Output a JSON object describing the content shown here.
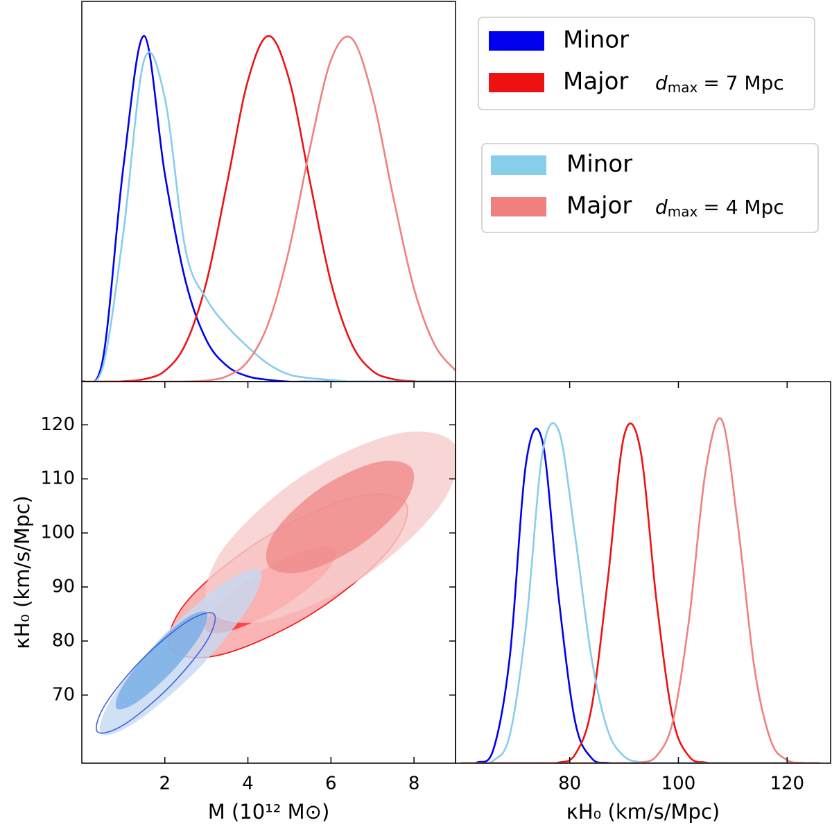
{
  "chart_data": [
    {
      "type": "line",
      "x": [
        0,
        0.5,
        1,
        1.5,
        2,
        2.5,
        3,
        3.5,
        4,
        4.5,
        5,
        5.5,
        6,
        6.5,
        7,
        7.5,
        8,
        8.5,
        9
      ],
      "xlim": [
        0,
        9
      ],
      "ylim": [
        0,
        1.1
      ],
      "series": [
        {
          "name": "Minor",
          "color": "#0000ee",
          "values": [
            0,
            0.06,
            0.62,
            1,
            0.6,
            0.29,
            0.12,
            0.045,
            0.015,
            0.005,
            0,
            0,
            0,
            0,
            0,
            0,
            0,
            0,
            0
          ]
        },
        {
          "name": "Major",
          "color": "#ee1111",
          "values": [
            0,
            0,
            0.001,
            0.007,
            0.031,
            0.109,
            0.287,
            0.575,
            0.871,
            1,
            0.871,
            0.575,
            0.287,
            0.109,
            0.031,
            0.007,
            0.001,
            0,
            0
          ]
        },
        {
          "name": "Minor",
          "color": "#87ceeb",
          "values": [
            0,
            0.04,
            0.43,
            0.93,
            0.82,
            0.38,
            0.24,
            0.16,
            0.1,
            0.05,
            0.02,
            0.01,
            0.005,
            0,
            0,
            0,
            0,
            0,
            0
          ]
        },
        {
          "name": "Major",
          "color": "#f08080",
          "values": [
            0,
            0,
            0,
            0,
            0,
            0.0005,
            0.003,
            0.016,
            0.059,
            0.171,
            0.386,
            0.679,
            0.93,
            0.993,
            0.825,
            0.534,
            0.269,
            0.106,
            0.032
          ]
        }
      ],
      "legend_groups": [
        {
          "symbol": "d",
          "subscript": "max",
          "text": "= 7 Mpc"
        },
        {
          "symbol": "d",
          "subscript": "max",
          "text": "= 4 Mpc"
        }
      ],
      "legend": "upper right"
    },
    {
      "type": "contour",
      "xlabel": "M (10¹² M⊙)",
      "ylabel": "κH₀ (km/s/Mpc)",
      "xlim": [
        0,
        9
      ],
      "ylim": [
        57.4,
        128
      ],
      "xticks": [
        2,
        4,
        6,
        8
      ],
      "yticks": [
        70,
        80,
        90,
        100,
        110,
        120
      ],
      "series": [
        {
          "color": "#ee1111",
          "fills": [
            "#f7a3a3",
            "#ff2a2a"
          ],
          "contours": [
            {
              "x": [
                7.8,
                7.37,
                5.53,
                3.37,
                2.13,
                2.56,
                4.4,
                6.57
              ],
              "y": [
                105.5,
                96.6,
                85.0,
                77.5,
                78.6,
                87.6,
                99.1,
                106.6
              ]
            },
            {
              "x": [
                6.11,
                5.84,
                4.81,
                3.63,
                2.99,
                3.26,
                4.29,
                5.47
              ],
              "y": [
                96.9,
                92.4,
                86.2,
                82.0,
                82.1,
                86.6,
                92.8,
                97.0
              ]
            }
          ]
        },
        {
          "color": "#f08080",
          "fills": [
            "#f7cccc",
            "#f08a8a"
          ],
          "contours": [
            {
              "x": [
                8.98,
                8.67,
                6.81,
                4.49,
                3.06,
                3.36,
                5.22,
                7.55
              ],
              "y": [
                116.4,
                105.5,
                92.0,
                83.8,
                85.7,
                96.6,
                110.1,
                118.3
              ]
            },
            {
              "x": [
                7.95,
                7.77,
                6.68,
                5.32,
                4.49,
                4.66,
                5.75,
                7.11
              ],
              "y": [
                111.9,
                105.5,
                97.6,
                92.8,
                94.0,
                100.4,
                108.3,
                113.1
              ]
            }
          ]
        },
        {
          "color": "#87ceeb",
          "fills": [
            "#c5daf2",
            "#74abe6"
          ],
          "contours": [
            {
              "x": [
                4.3,
                4.03,
                2.8,
                1.32,
                0.47,
                0.73,
                1.97,
                3.44
              ],
              "y": [
                93.1,
                86.4,
                74.8,
                65.1,
                62.8,
                69.5,
                81.1,
                90.8
              ]
            },
            {
              "x": [
                3.0,
                2.87,
                2.19,
                1.35,
                0.84,
                0.97,
                1.65,
                2.49
              ],
              "y": [
                85.3,
                81.3,
                74.5,
                68.8,
                67.5,
                71.5,
                78.3,
                84.1
              ]
            }
          ]
        },
        {
          "color": "#4060e0",
          "contours": [
            {
              "x": [
                3.18,
                3.01,
                2.12,
                1.03,
                0.38,
                0.56,
                1.45,
                2.54
              ],
              "y": [
                85.0,
                80.0,
                71.6,
                64.6,
                63.2,
                68.2,
                76.6,
                83.6
              ]
            }
          ]
        }
      ]
    },
    {
      "type": "line",
      "xlabel": "κH₀ (km/s/Mpc)",
      "x": [
        60,
        63,
        66,
        69,
        72,
        75,
        78,
        81,
        84,
        87,
        90,
        93,
        96,
        99,
        102,
        105,
        108,
        111,
        114,
        117,
        120,
        123,
        126
      ],
      "xlim": [
        59,
        128
      ],
      "ylim": [
        0,
        1.1
      ],
      "xticks": [
        80,
        100,
        120
      ],
      "series": [
        {
          "color": "#0000ee",
          "values": [
            0,
            0.002,
            0.041,
            0.309,
            0.868,
            0.927,
            0.474,
            0.12,
            0.015,
            0.001,
            0,
            0,
            0,
            0,
            0,
            0,
            0,
            0,
            0,
            0,
            0,
            0,
            0
          ]
        },
        {
          "color": "#ee1111",
          "values": [
            0,
            0,
            0,
            0,
            0,
            0,
            0.002,
            0.025,
            0.158,
            0.527,
            0.943,
            0.904,
            0.464,
            0.128,
            0.019,
            0.002,
            0,
            0,
            0,
            0,
            0,
            0,
            0
          ]
        },
        {
          "color": "#87ceeb",
          "values": [
            0,
            0,
            0.008,
            0.082,
            0.4,
            0.895,
            0.958,
            0.655,
            0.305,
            0.095,
            0.02,
            0.003,
            0,
            0,
            0,
            0,
            0,
            0,
            0,
            0,
            0,
            0,
            0
          ]
        },
        {
          "color": "#f08080",
          "values": [
            0,
            0,
            0,
            0,
            0,
            0,
            0,
            0,
            0,
            0,
            0,
            0.002,
            0.021,
            0.122,
            0.419,
            0.842,
            0.989,
            0.679,
            0.273,
            0.065,
            0.009,
            0.001,
            0
          ]
        }
      ]
    }
  ]
}
